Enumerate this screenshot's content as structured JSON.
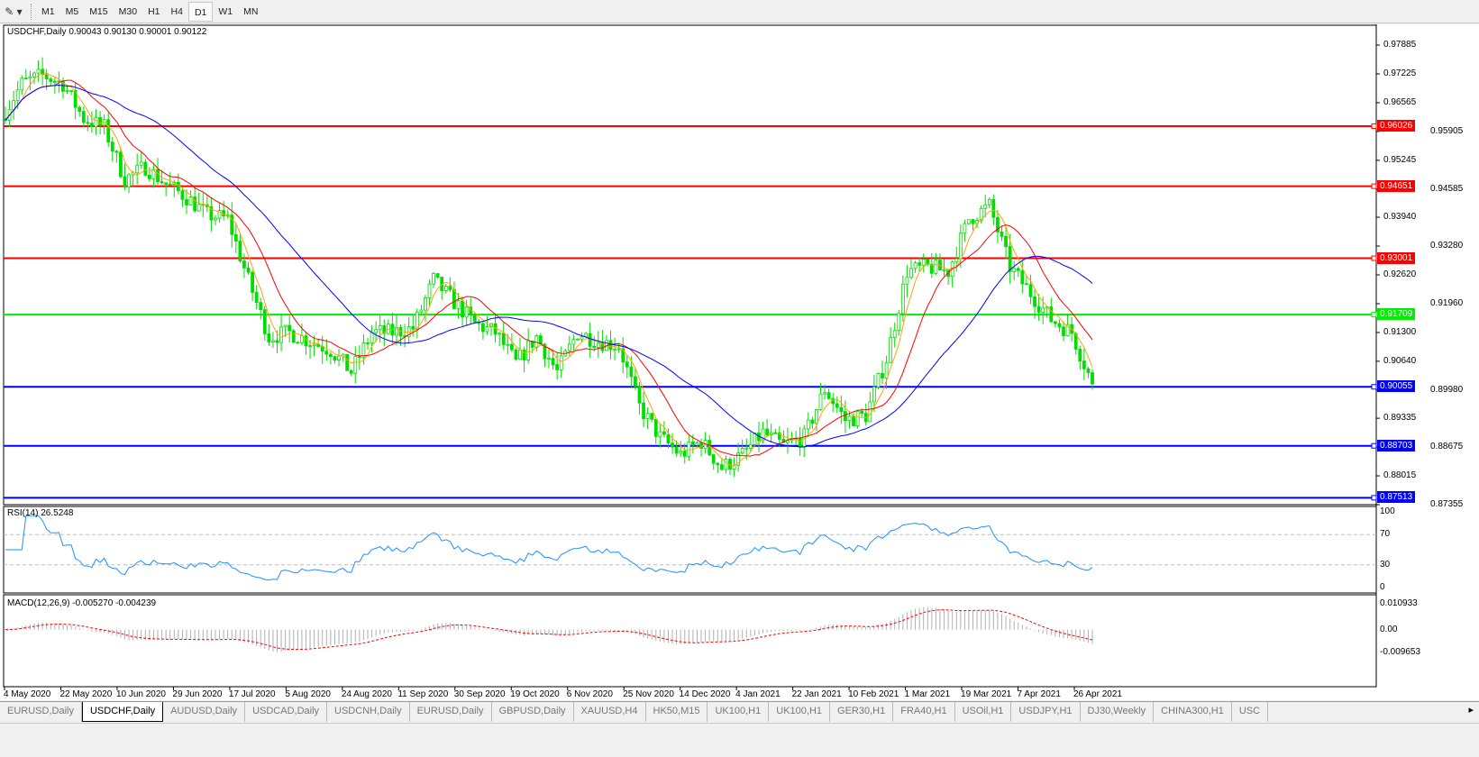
{
  "toolbar": {
    "timeframes": [
      "M1",
      "M5",
      "M15",
      "M30",
      "H1",
      "H4",
      "D1",
      "W1",
      "MN"
    ],
    "active": "D1"
  },
  "chart": {
    "symbol_info": "USDCHF,Daily  0.90043 0.90130 0.90001 0.90122",
    "price_ticks": [
      "0.97885",
      "0.97225",
      "0.96565",
      "0.95905",
      "0.95245",
      "0.94585",
      "0.93940",
      "0.93280",
      "0.92620",
      "0.91960",
      "0.91300",
      "0.90640",
      "0.89980",
      "0.89335",
      "0.88675",
      "0.88015",
      "0.87355"
    ],
    "hlines": [
      {
        "price": 0.96026,
        "label": "0.96026",
        "color": "#ff0000"
      },
      {
        "price": 0.94651,
        "label": "0.94651",
        "color": "#ff0000"
      },
      {
        "price": 0.93001,
        "label": "0.93001",
        "color": "#ff0000"
      },
      {
        "price": 0.91709,
        "label": "0.91709",
        "color": "#00ee00"
      },
      {
        "price": 0.90055,
        "label": "0.90055",
        "color": "#0000ff"
      },
      {
        "price": 0.88703,
        "label": "0.88703",
        "color": "#0000ff"
      },
      {
        "price": 0.87513,
        "label": "0.87513",
        "color": "#0000ff"
      }
    ],
    "bull_color": "#00dd00",
    "bear_color": "#00dd00",
    "ma_colors": [
      "#ffa500",
      "#ff0000",
      "#0000ff"
    ],
    "date_ticks": [
      "4 May 2020",
      "22 May 2020",
      "10 Jun 2020",
      "29 Jun 2020",
      "17 Jul 2020",
      "5 Aug 2020",
      "24 Aug 2020",
      "11 Sep 2020",
      "30 Sep 2020",
      "19 Oct 2020",
      "6 Nov 2020",
      "25 Nov 2020",
      "14 Dec 2020",
      "4 Jan 2021",
      "22 Jan 2021",
      "10 Feb 2021",
      "1 Mar 2021",
      "19 Mar 2021",
      "7 Apr 2021",
      "26 Apr 2021"
    ]
  },
  "chart_data": {
    "type": "candlestick",
    "symbol": "USDCHF",
    "timeframe": "Daily",
    "last_bar": {
      "open": 0.90043,
      "high": 0.9013,
      "low": 0.90001,
      "close": 0.90122
    },
    "weekly_closes": {
      "weeks_from": "4 May 2020",
      "values": [
        0.97,
        0.972,
        0.97,
        0.962,
        0.96,
        0.948,
        0.951,
        0.947,
        0.944,
        0.94,
        0.939,
        0.925,
        0.912,
        0.913,
        0.911,
        0.909,
        0.904,
        0.913,
        0.913,
        0.914,
        0.925,
        0.92,
        0.915,
        0.913,
        0.906,
        0.912,
        0.904,
        0.913,
        0.911,
        0.91,
        0.896,
        0.889,
        0.885,
        0.888,
        0.882,
        0.885,
        0.89,
        0.887,
        0.889,
        0.9,
        0.893,
        0.894,
        0.907,
        0.927,
        0.928,
        0.927,
        0.939,
        0.942,
        0.928,
        0.922,
        0.916,
        0.913,
        0.9012
      ]
    },
    "ylim": [
      0.87355,
      0.97885
    ]
  },
  "rsi": {
    "label": "RSI(14) 26.5248",
    "ticks": [
      "100",
      "70",
      "30",
      "0"
    ],
    "value": 26.5248,
    "color": "#1e90ff"
  },
  "macd": {
    "label": "MACD(12,26,9) -0.005270 -0.004239",
    "ticks": [
      "0.010933",
      "0.00",
      "-0.009653"
    ],
    "macd": -0.00527,
    "signal": -0.004239,
    "signal_color": "#ff0000"
  },
  "tabs": [
    "EURUSD,Daily",
    "USDCHF,Daily",
    "AUDUSD,Daily",
    "USDCAD,Daily",
    "USDCNH,Daily",
    "EURUSD,Daily",
    "GBPUSD,Daily",
    "XAUUSD,H4",
    "HK50,M15",
    "UK100,H1",
    "UK100,H1",
    "GER30,H1",
    "FRA40,H1",
    "USOil,H1",
    "USDJPY,H1",
    "DJ30,Weekly",
    "CHINA300,H1",
    "USC"
  ],
  "active_tab": "USDCHF,Daily"
}
